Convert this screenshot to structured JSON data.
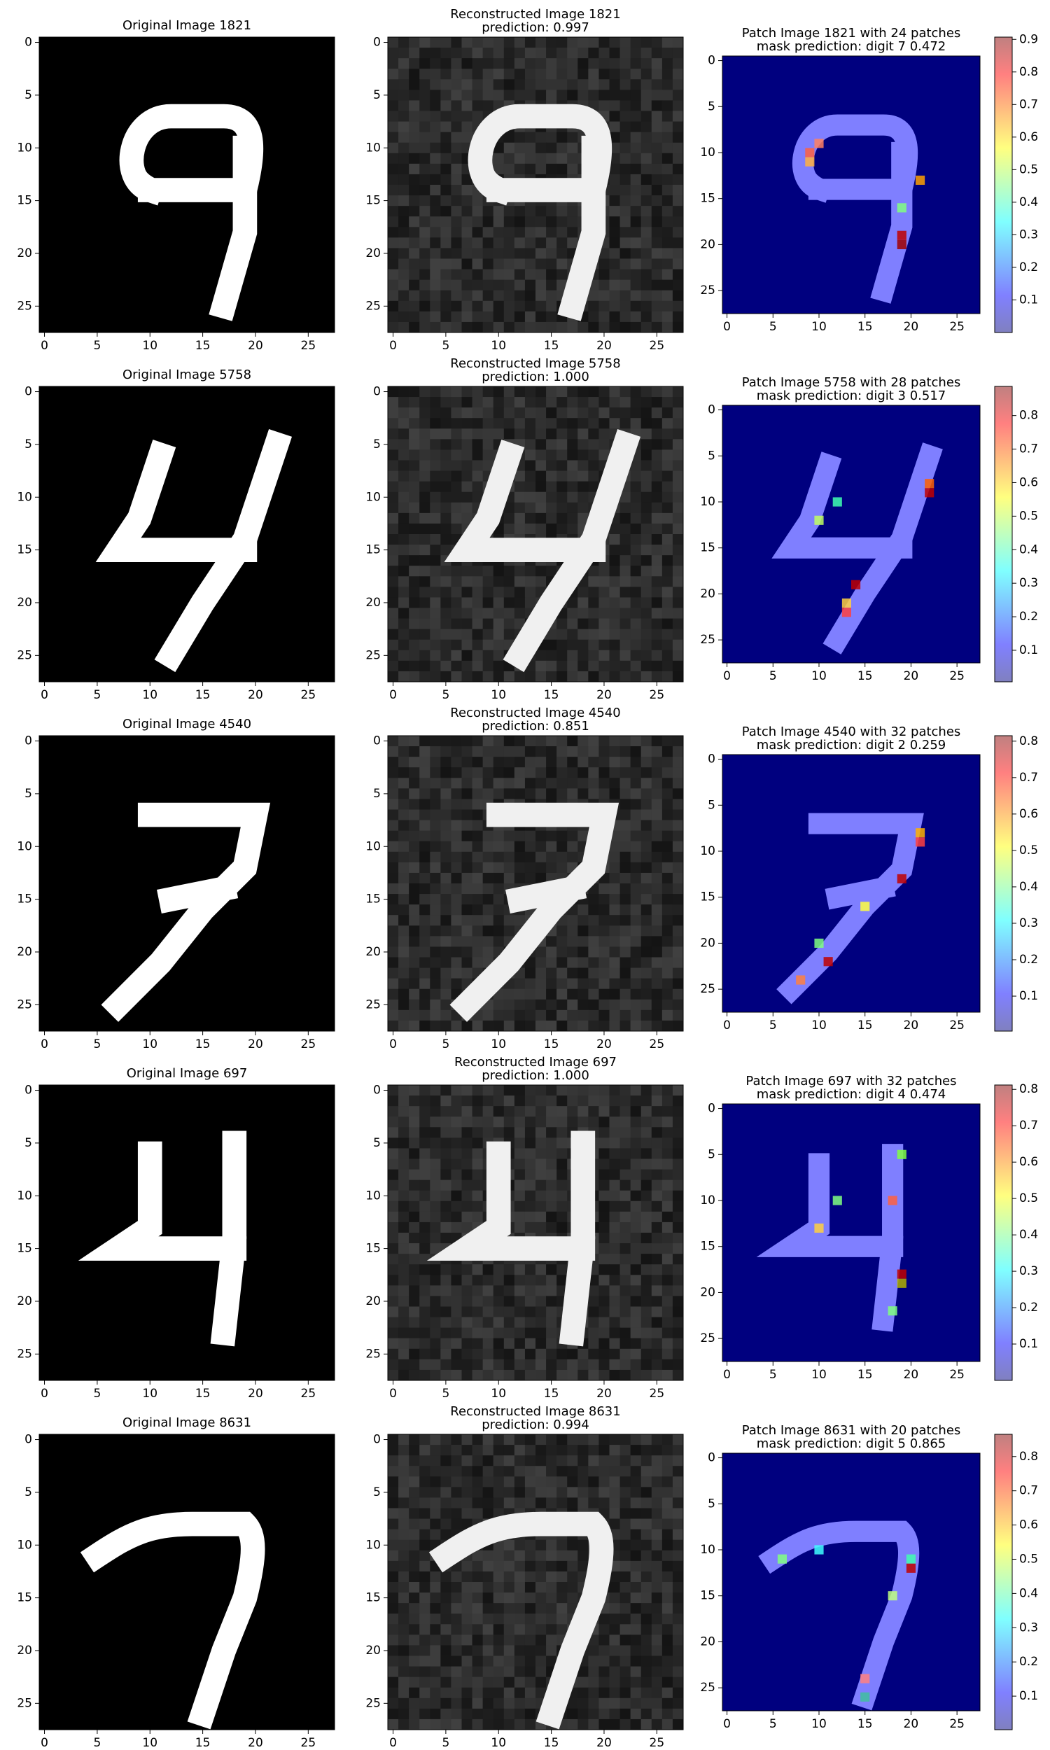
{
  "chart_data": [
    {
      "type": "image",
      "title": "Original Image 1821",
      "xlim": [
        -0.5,
        27.5
      ],
      "ylim": [
        27.5,
        -0.5
      ],
      "xticks": [
        0,
        5,
        10,
        15,
        20,
        25
      ],
      "yticks": [
        0,
        5,
        10,
        15,
        20,
        25
      ]
    },
    {
      "type": "image",
      "title": "Reconstructed Image 1821",
      "subtitle": "prediction: 0.997",
      "xlim": [
        -0.5,
        27.5
      ],
      "ylim": [
        27.5,
        -0.5
      ],
      "xticks": [
        0,
        5,
        10,
        15,
        20,
        25
      ],
      "yticks": [
        0,
        5,
        10,
        15,
        20,
        25
      ]
    },
    {
      "type": "heatmap",
      "title": "Patch Image 1821 with 24 patches",
      "subtitle": "mask prediction: digit 7 0.472",
      "xlim": [
        -0.5,
        27.5
      ],
      "ylim": [
        27.5,
        -0.5
      ],
      "xticks": [
        0,
        5,
        10,
        15,
        20,
        25
      ],
      "yticks": [
        0,
        5,
        10,
        15,
        20,
        25
      ],
      "clim": [
        0,
        0.907
      ],
      "cticks": [
        0.1,
        0.2,
        0.3,
        0.4,
        0.5,
        0.6,
        0.7,
        0.8,
        0.9
      ]
    },
    {
      "type": "image",
      "title": "Original Image 5758",
      "xlim": [
        -0.5,
        27.5
      ],
      "ylim": [
        27.5,
        -0.5
      ],
      "xticks": [
        0,
        5,
        10,
        15,
        20,
        25
      ],
      "yticks": [
        0,
        5,
        10,
        15,
        20,
        25
      ]
    },
    {
      "type": "image",
      "title": "Reconstructed Image 5758",
      "subtitle": "prediction: 1.000",
      "xlim": [
        -0.5,
        27.5
      ],
      "ylim": [
        27.5,
        -0.5
      ],
      "xticks": [
        0,
        5,
        10,
        15,
        20,
        25
      ],
      "yticks": [
        0,
        5,
        10,
        15,
        20,
        25
      ]
    },
    {
      "type": "heatmap",
      "title": "Patch Image 5758 with 28 patches",
      "subtitle": "mask prediction: digit 3 0.517",
      "xlim": [
        -0.5,
        27.5
      ],
      "ylim": [
        27.5,
        -0.5
      ],
      "xticks": [
        0,
        5,
        10,
        15,
        20,
        25
      ],
      "yticks": [
        0,
        5,
        10,
        15,
        20,
        25
      ],
      "clim": [
        0.006,
        0.887
      ],
      "cticks": [
        0.1,
        0.2,
        0.3,
        0.4,
        0.5,
        0.6,
        0.7,
        0.8
      ]
    },
    {
      "type": "image",
      "title": "Original Image 4540",
      "xlim": [
        -0.5,
        27.5
      ],
      "ylim": [
        27.5,
        -0.5
      ],
      "xticks": [
        0,
        5,
        10,
        15,
        20,
        25
      ],
      "yticks": [
        0,
        5,
        10,
        15,
        20,
        25
      ]
    },
    {
      "type": "image",
      "title": "Reconstructed Image 4540",
      "subtitle": "prediction: 0.851",
      "xlim": [
        -0.5,
        27.5
      ],
      "ylim": [
        27.5,
        -0.5
      ],
      "xticks": [
        0,
        5,
        10,
        15,
        20,
        25
      ],
      "yticks": [
        0,
        5,
        10,
        15,
        20,
        25
      ]
    },
    {
      "type": "heatmap",
      "title": "Patch Image 4540 with 32 patches",
      "subtitle": "mask prediction: digit 2 0.259",
      "xlim": [
        -0.5,
        27.5
      ],
      "ylim": [
        27.5,
        -0.5
      ],
      "xticks": [
        0,
        5,
        10,
        15,
        20,
        25
      ],
      "yticks": [
        0,
        5,
        10,
        15,
        20,
        25
      ],
      "clim": [
        0.004,
        0.815
      ],
      "cticks": [
        0.1,
        0.2,
        0.3,
        0.4,
        0.5,
        0.6,
        0.7,
        0.8
      ]
    },
    {
      "type": "image",
      "title": "Original Image 697",
      "xlim": [
        -0.5,
        27.5
      ],
      "ylim": [
        27.5,
        -0.5
      ],
      "xticks": [
        0,
        5,
        10,
        15,
        20,
        25
      ],
      "yticks": [
        0,
        5,
        10,
        15,
        20,
        25
      ]
    },
    {
      "type": "image",
      "title": "Reconstructed Image 697",
      "subtitle": "prediction: 1.000",
      "xlim": [
        -0.5,
        27.5
      ],
      "ylim": [
        27.5,
        -0.5
      ],
      "xticks": [
        0,
        5,
        10,
        15,
        20,
        25
      ],
      "yticks": [
        0,
        5,
        10,
        15,
        20,
        25
      ]
    },
    {
      "type": "heatmap",
      "title": "Patch Image 697 with 32 patches",
      "subtitle": "mask prediction: digit 4 0.474",
      "xlim": [
        -0.5,
        27.5
      ],
      "ylim": [
        27.5,
        -0.5
      ],
      "xticks": [
        0,
        5,
        10,
        15,
        20,
        25
      ],
      "yticks": [
        0,
        5,
        10,
        15,
        20,
        25
      ],
      "clim": [
        0,
        0.812
      ],
      "cticks": [
        0.1,
        0.2,
        0.3,
        0.4,
        0.5,
        0.6,
        0.7,
        0.8
      ]
    },
    {
      "type": "image",
      "title": "Original Image 8631",
      "xlim": [
        -0.5,
        27.5
      ],
      "ylim": [
        27.5,
        -0.5
      ],
      "xticks": [
        0,
        5,
        10,
        15,
        20,
        25
      ],
      "yticks": [
        0,
        5,
        10,
        15,
        20,
        25
      ]
    },
    {
      "type": "image",
      "title": "Reconstructed Image 8631",
      "subtitle": "prediction: 0.994",
      "xlim": [
        -0.5,
        27.5
      ],
      "ylim": [
        27.5,
        -0.5
      ],
      "xticks": [
        0,
        5,
        10,
        15,
        20,
        25
      ],
      "yticks": [
        0,
        5,
        10,
        15,
        20,
        25
      ]
    },
    {
      "type": "heatmap",
      "title": "Patch Image 8631 with 20 patches",
      "subtitle": "mask prediction: digit 5 0.865",
      "xlim": [
        -0.5,
        27.5
      ],
      "ylim": [
        27.5,
        -0.5
      ],
      "xticks": [
        0,
        5,
        10,
        15,
        20,
        25
      ],
      "yticks": [
        0,
        5,
        10,
        15,
        20,
        25
      ],
      "clim": [
        0.002,
        0.865
      ],
      "cticks": [
        0.1,
        0.2,
        0.3,
        0.4,
        0.5,
        0.6,
        0.7,
        0.8
      ]
    }
  ]
}
